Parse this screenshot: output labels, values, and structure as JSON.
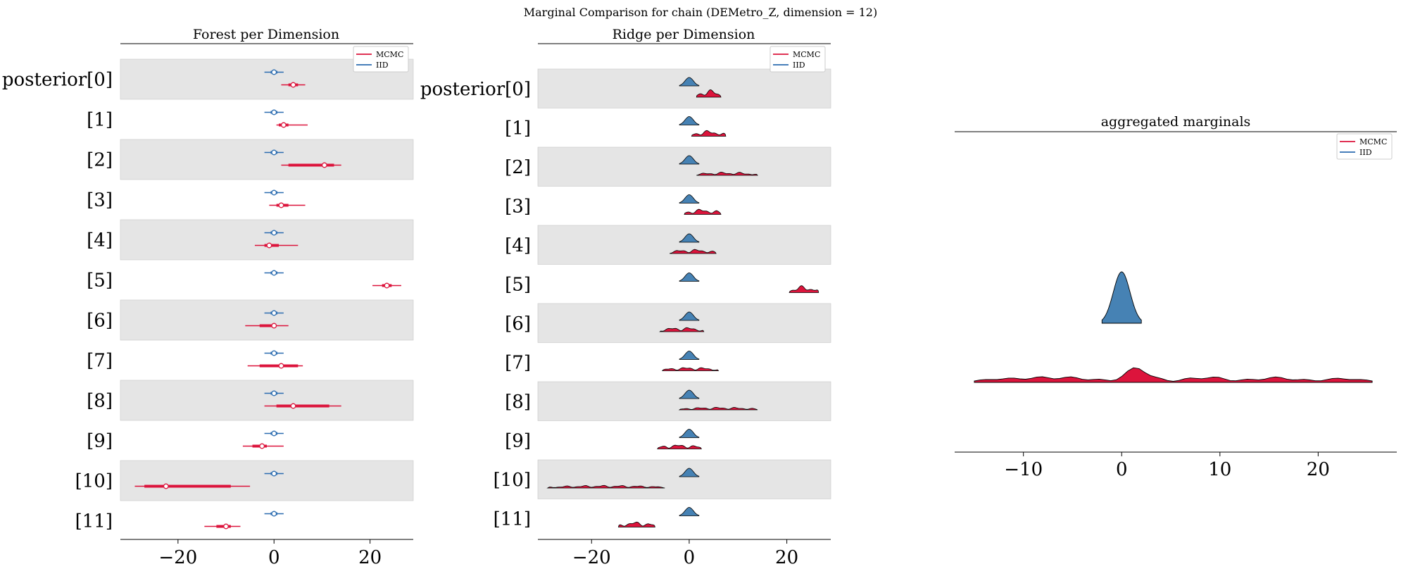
{
  "suptitle": "Marginal Comparison for chain (DEMetro_Z, dimension = 12)",
  "colors": {
    "mcmc": "#dc143c",
    "iid": "#4682b4",
    "iid_line": "#2b6cb0",
    "band": "#e5e5e5"
  },
  "legend": [
    "MCMC",
    "IID"
  ],
  "chart_data": [
    {
      "type": "forest",
      "title": "Forest per Dimension",
      "row_labels": [
        "posterior[0]",
        "[1]",
        "[2]",
        "[3]",
        "[4]",
        "[5]",
        "[6]",
        "[7]",
        "[8]",
        "[9]",
        "[10]",
        "[11]"
      ],
      "xlim": [
        -32,
        29
      ],
      "xticks": [
        -20,
        0,
        20
      ],
      "xtick_labels": [
        "−20",
        "0",
        "20"
      ],
      "legend_position": "top-right",
      "series": [
        {
          "name": "MCMC",
          "color": "#dc143c",
          "points": [
            {
              "mean": 4.0,
              "hdi50": [
                3.0,
                5.0
              ],
              "hdi94": [
                1.5,
                6.5
              ]
            },
            {
              "mean": 2.0,
              "hdi50": [
                1.0,
                3.0
              ],
              "hdi94": [
                0.5,
                7.0
              ]
            },
            {
              "mean": 10.5,
              "hdi50": [
                3.0,
                12.5
              ],
              "hdi94": [
                1.5,
                14.0
              ]
            },
            {
              "mean": 1.5,
              "hdi50": [
                0.5,
                3.0
              ],
              "hdi94": [
                -1.0,
                6.5
              ]
            },
            {
              "mean": -1.0,
              "hdi50": [
                -2.0,
                1.0
              ],
              "hdi94": [
                -4.0,
                5.0
              ]
            },
            {
              "mean": 23.5,
              "hdi50": [
                22.5,
                24.5
              ],
              "hdi94": [
                20.5,
                26.5
              ]
            },
            {
              "mean": 0.0,
              "hdi50": [
                -3.0,
                0.5
              ],
              "hdi94": [
                -6.0,
                3.0
              ]
            },
            {
              "mean": 1.5,
              "hdi50": [
                -3.0,
                5.0
              ],
              "hdi94": [
                -5.5,
                6.0
              ]
            },
            {
              "mean": 4.0,
              "hdi50": [
                0.5,
                11.5
              ],
              "hdi94": [
                -2.0,
                14.0
              ]
            },
            {
              "mean": -2.5,
              "hdi50": [
                -4.5,
                -1.5
              ],
              "hdi94": [
                -6.5,
                2.0
              ]
            },
            {
              "mean": -22.5,
              "hdi50": [
                -27.0,
                -9.0
              ],
              "hdi94": [
                -29.0,
                -5.0
              ]
            },
            {
              "mean": -10.0,
              "hdi50": [
                -12.0,
                -9.0
              ],
              "hdi94": [
                -14.5,
                -7.0
              ]
            }
          ]
        },
        {
          "name": "IID",
          "color": "#4682b4",
          "points": [
            {
              "mean": 0.0,
              "hdi50": [
                -0.7,
                0.7
              ],
              "hdi94": [
                -2.0,
                2.0
              ]
            },
            {
              "mean": 0.0,
              "hdi50": [
                -0.7,
                0.7
              ],
              "hdi94": [
                -2.0,
                2.0
              ]
            },
            {
              "mean": 0.0,
              "hdi50": [
                -0.7,
                0.7
              ],
              "hdi94": [
                -2.0,
                2.0
              ]
            },
            {
              "mean": 0.0,
              "hdi50": [
                -0.7,
                0.7
              ],
              "hdi94": [
                -2.0,
                2.0
              ]
            },
            {
              "mean": 0.0,
              "hdi50": [
                -0.7,
                0.7
              ],
              "hdi94": [
                -2.0,
                2.0
              ]
            },
            {
              "mean": 0.0,
              "hdi50": [
                -0.7,
                0.7
              ],
              "hdi94": [
                -2.0,
                2.0
              ]
            },
            {
              "mean": 0.0,
              "hdi50": [
                -0.7,
                0.7
              ],
              "hdi94": [
                -2.0,
                2.0
              ]
            },
            {
              "mean": 0.0,
              "hdi50": [
                -0.7,
                0.7
              ],
              "hdi94": [
                -2.0,
                2.0
              ]
            },
            {
              "mean": 0.0,
              "hdi50": [
                -0.7,
                0.7
              ],
              "hdi94": [
                -2.0,
                2.0
              ]
            },
            {
              "mean": 0.0,
              "hdi50": [
                -0.7,
                0.7
              ],
              "hdi94": [
                -2.0,
                2.0
              ]
            },
            {
              "mean": 0.0,
              "hdi50": [
                -0.7,
                0.7
              ],
              "hdi94": [
                -2.0,
                2.0
              ]
            },
            {
              "mean": 0.0,
              "hdi50": [
                -0.7,
                0.7
              ],
              "hdi94": [
                -2.0,
                2.0
              ]
            }
          ]
        }
      ]
    },
    {
      "type": "ridge",
      "title": "Ridge per Dimension",
      "row_labels": [
        "posterior[0]",
        "[1]",
        "[2]",
        "[3]",
        "[4]",
        "[5]",
        "[6]",
        "[7]",
        "[8]",
        "[9]",
        "[10]",
        "[11]"
      ],
      "xlim": [
        -31,
        29
      ],
      "xticks": [
        -20,
        0,
        20
      ],
      "xtick_labels": [
        "−20",
        "0",
        "20"
      ],
      "legend_position": "top-right",
      "series": [
        {
          "name": "MCMC",
          "color": "#dc143c",
          "ranges": [
            [
              1.5,
              6.5
            ],
            [
              0.5,
              7.5
            ],
            [
              1.5,
              14.0
            ],
            [
              -1.0,
              6.5
            ],
            [
              -4.0,
              5.5
            ],
            [
              20.5,
              26.5
            ],
            [
              -6.0,
              3.0
            ],
            [
              -5.5,
              6.0
            ],
            [
              -2.0,
              14.0
            ],
            [
              -6.5,
              2.5
            ],
            [
              -29.0,
              -5.0
            ],
            [
              -14.5,
              -7.0
            ]
          ]
        },
        {
          "name": "IID",
          "color": "#4682b4",
          "ranges": [
            [
              -2.0,
              2.0
            ],
            [
              -2.0,
              2.0
            ],
            [
              -2.0,
              2.0
            ],
            [
              -2.0,
              2.0
            ],
            [
              -2.0,
              2.0
            ],
            [
              -2.0,
              2.0
            ],
            [
              -2.0,
              2.0
            ],
            [
              -2.0,
              2.0
            ],
            [
              -2.0,
              2.0
            ],
            [
              -2.0,
              2.0
            ],
            [
              -2.0,
              2.0
            ],
            [
              -2.0,
              2.0
            ]
          ]
        }
      ]
    },
    {
      "type": "area",
      "title": "aggregated marginals",
      "xlim": [
        -17,
        28
      ],
      "xticks": [
        -10,
        0,
        10,
        20
      ],
      "xtick_labels": [
        "−10",
        "0",
        "10",
        "20"
      ],
      "legend_position": "top-right",
      "series": [
        {
          "name": "IID",
          "color": "#4682b4",
          "range": [
            -2.0,
            2.0
          ],
          "mean": 0.0
        },
        {
          "name": "MCMC",
          "color": "#dc143c",
          "range": [
            -15.0,
            25.5
          ],
          "mean": 1.5
        }
      ]
    }
  ]
}
